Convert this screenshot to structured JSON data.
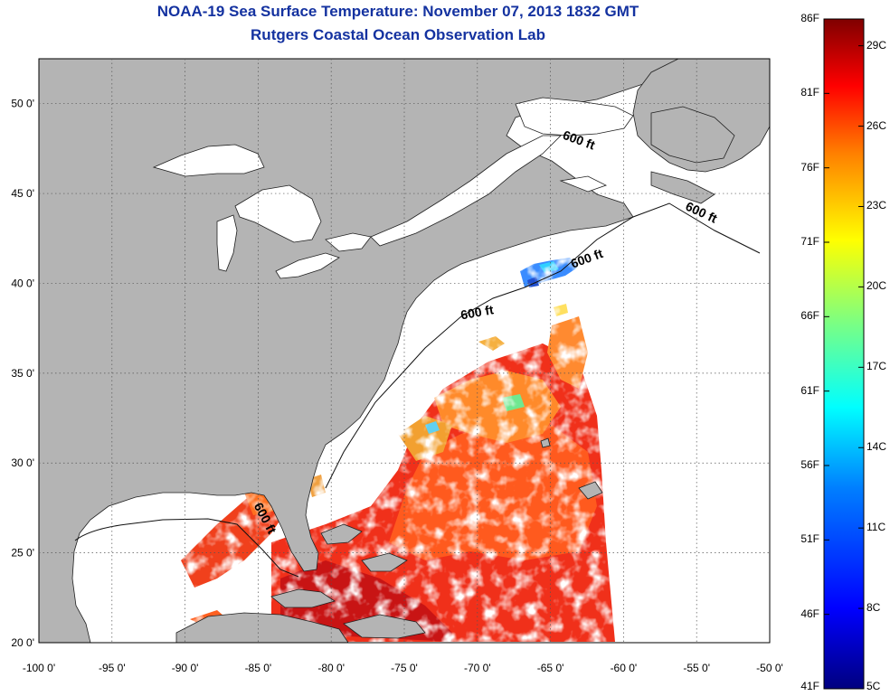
{
  "title": "NOAA-19 Sea Surface Temperature:  November 07, 2013 1832 GMT",
  "subtitle": "Rutgers Coastal Ocean Observation Lab",
  "axes": {
    "x_ticks": [
      "-100 0'",
      "-95 0'",
      "-90 0'",
      "-85 0'",
      "-80 0'",
      "-75 0'",
      "-70 0'",
      "-65 0'",
      "-60 0'",
      "-55 0'",
      "-50 0'"
    ],
    "y_ticks": [
      "50 0'",
      "45 0'",
      "40 0'",
      "35 0'",
      "30 0'",
      "25 0'",
      "20 0'"
    ],
    "lon_range": [
      -100,
      -50
    ],
    "lat_range": [
      20,
      52.5
    ],
    "grid": "dotted"
  },
  "contour_label": "600 ft",
  "colorbar": {
    "fahrenheit_labels": [
      "86F",
      "81F",
      "76F",
      "71F",
      "66F",
      "61F",
      "56F",
      "51F",
      "46F",
      "41F"
    ],
    "celsius_labels": [
      "29C",
      "26C",
      "23C",
      "20C",
      "17C",
      "14C",
      "11C",
      "8C",
      "5C"
    ],
    "colors": [
      "#00007f",
      "#0000ff",
      "#007fff",
      "#00ffff",
      "#7fff7f",
      "#ffff00",
      "#ff7f00",
      "#ff0000",
      "#7f0000"
    ],
    "land_color": "#b4b4b4"
  }
}
